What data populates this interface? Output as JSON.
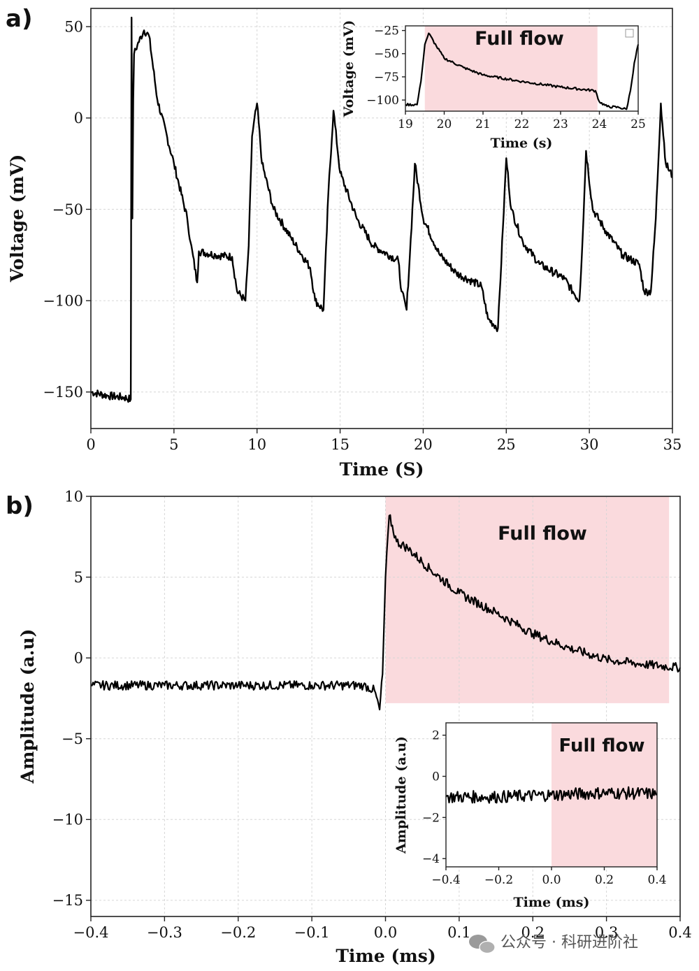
{
  "chart_data": [
    {
      "id": "a",
      "type": "line",
      "panel_label": "a)",
      "xlabel": "Time (S)",
      "ylabel": "Voltage (mV)",
      "xlim": [
        0,
        35
      ],
      "ylim": [
        -170,
        60
      ],
      "xticks": [
        0,
        5,
        10,
        15,
        20,
        25,
        30,
        35
      ],
      "yticks": [
        50,
        0,
        -50,
        -100,
        -150
      ],
      "xtick_labels": [
        "0",
        "5",
        "10",
        "15",
        "20",
        "25",
        "30",
        "35"
      ],
      "ytick_labels": [
        "50",
        "0",
        "−50",
        "−100",
        "−150"
      ],
      "grid": true,
      "series": [
        {
          "color": "#000000",
          "x": [
            0,
            1,
            2,
            2.4,
            2.45,
            2.5,
            2.55,
            2.6,
            2.8,
            3.2,
            3.5,
            4,
            5,
            5.8,
            6.0,
            6.4,
            6.5,
            7.5,
            8.5,
            8.8,
            9.3,
            9.5,
            9.7,
            10.0,
            10.3,
            11,
            12,
            13.2,
            13.5,
            14.0,
            14.3,
            14.6,
            15.0,
            16,
            17,
            18.5,
            18.7,
            19.0,
            19.2,
            19.5,
            20.0,
            21,
            22,
            23.5,
            23.9,
            24.5,
            24.8,
            25.0,
            25.3,
            26,
            27,
            28.5,
            29.0,
            29.4,
            29.6,
            29.8,
            30.2,
            31,
            32,
            33,
            33.3,
            33.7,
            34.0,
            34.3,
            34.6,
            35
          ],
          "y": [
            -150,
            -152,
            -153,
            -154,
            55,
            -55,
            10,
            35,
            40,
            48,
            45,
            10,
            -25,
            -55,
            -68,
            -90,
            -73,
            -75,
            -76,
            -95,
            -100,
            -70,
            -10,
            8,
            -25,
            -50,
            -65,
            -82,
            -100,
            -105,
            -40,
            4,
            -30,
            -55,
            -70,
            -78,
            -95,
            -105,
            -75,
            -25,
            -55,
            -75,
            -85,
            -92,
            -110,
            -115,
            -60,
            -22,
            -50,
            -68,
            -80,
            -88,
            -95,
            -100,
            -65,
            -18,
            -50,
            -62,
            -75,
            -80,
            -95,
            -95,
            -55,
            8,
            -25,
            -32
          ]
        }
      ],
      "inset": {
        "type": "line",
        "xlabel": "Time (s)",
        "ylabel": "Voltage (mV)",
        "xlim": [
          19,
          25
        ],
        "ylim": [
          -112,
          -20
        ],
        "xticks": [
          19,
          20,
          21,
          22,
          23,
          24,
          25
        ],
        "yticks": [
          -25,
          -50,
          -75,
          -100
        ],
        "xtick_labels": [
          "19",
          "20",
          "21",
          "22",
          "23",
          "24",
          "25"
        ],
        "ytick_labels": [
          "−25",
          "−50",
          "−75",
          "−100"
        ],
        "shade": {
          "x0": 19.5,
          "x1": 23.95,
          "color": "#fadadd"
        },
        "annotation": "Full flow",
        "series": [
          {
            "color": "#000000",
            "x": [
              19,
              19.3,
              19.4,
              19.5,
              19.6,
              19.8,
              20,
              20.5,
              21,
              22,
              23,
              23.9,
              24.0,
              24.2,
              24.5,
              24.7,
              24.8,
              24.9,
              25
            ],
            "y": [
              -105,
              -105,
              -80,
              -40,
              -28,
              -42,
              -55,
              -65,
              -73,
              -80,
              -86,
              -90,
              -102,
              -107,
              -108,
              -110,
              -90,
              -60,
              -40
            ]
          }
        ]
      }
    },
    {
      "id": "b",
      "type": "line",
      "panel_label": "b)",
      "xlabel": "Time (ms)",
      "ylabel": "Amplitude (a.u)",
      "xlim": [
        -0.4,
        0.4
      ],
      "ylim": [
        -16,
        10
      ],
      "xticks": [
        -0.4,
        -0.3,
        -0.2,
        -0.1,
        0.0,
        0.1,
        0.2,
        0.3,
        0.4
      ],
      "yticks": [
        10,
        5,
        0,
        -5,
        -10,
        -15
      ],
      "xtick_labels": [
        "−0.4",
        "−0.3",
        "−0.2",
        "−0.1",
        "0.0",
        "0.1",
        "0.2",
        "0.3",
        "0.4"
      ],
      "ytick_labels": [
        "10",
        "5",
        "0",
        "−5",
        "−10",
        "−15"
      ],
      "grid": true,
      "shade": {
        "x0": 0.0,
        "x1": 0.385,
        "y0": -2.8,
        "y1": 10,
        "color": "#fadadd"
      },
      "annotation": "Full flow",
      "series": [
        {
          "color": "#000000",
          "x": [
            -0.4,
            -0.3,
            -0.2,
            -0.1,
            -0.03,
            -0.015,
            -0.008,
            -0.004,
            0.0,
            0.005,
            0.015,
            0.03,
            0.06,
            0.1,
            0.15,
            0.2,
            0.25,
            0.3,
            0.35,
            0.4
          ],
          "y": [
            -1.7,
            -1.7,
            -1.7,
            -1.7,
            -1.7,
            -2.0,
            -3.2,
            -1.0,
            5.0,
            8.8,
            7.2,
            6.8,
            5.5,
            4.0,
            2.8,
            1.5,
            0.6,
            -0.1,
            -0.4,
            -0.6
          ]
        }
      ],
      "inset": {
        "type": "line",
        "xlabel": "Time (ms)",
        "ylabel": "Amplitude (a.u)",
        "xlim": [
          -0.4,
          0.4
        ],
        "ylim": [
          -4.4,
          2.6
        ],
        "xticks": [
          -0.4,
          -0.2,
          0.0,
          0.2,
          0.4
        ],
        "yticks": [
          2,
          0,
          -2,
          -4
        ],
        "xtick_labels": [
          "−0.4",
          "−0.2",
          "0.0",
          "0.2",
          "0.4"
        ],
        "ytick_labels": [
          "2",
          "0",
          "−2",
          "−4"
        ],
        "shade": {
          "x0": 0.0,
          "x1": 0.4,
          "color": "#fadadd"
        },
        "annotation": "Full flow",
        "series": [
          {
            "color": "#000000",
            "x": [
              -0.4,
              -0.2,
              0.0,
              0.2,
              0.4
            ],
            "y": [
              -1.0,
              -1.0,
              -0.9,
              -0.8,
              -0.85
            ]
          }
        ]
      }
    }
  ],
  "watermark": "公众号 · 科研进阶社"
}
